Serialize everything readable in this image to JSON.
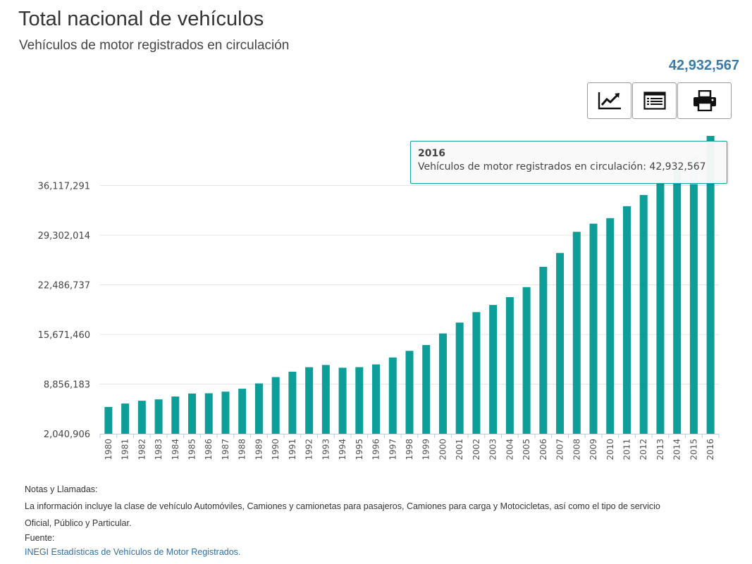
{
  "header": {
    "title": "Total nacional de vehículos",
    "subtitle": "Vehículos de motor registrados en circulación",
    "total_value": "42,932,567"
  },
  "toolbar": {
    "buttons": [
      {
        "name": "line-chart-button",
        "icon": "line-chart-icon"
      },
      {
        "name": "table-view-button",
        "icon": "table-list-icon"
      },
      {
        "name": "print-button",
        "icon": "printer-icon"
      }
    ]
  },
  "tooltip": {
    "year": "2016",
    "text": "Vehículos de motor registrados en circulación: 42,932,567"
  },
  "colors": {
    "bar": "#0e9e9a",
    "bar_highlight": "#a9dcdb",
    "accent": "#3a7aa8",
    "grid": "#e6e6e6"
  },
  "chart_data": {
    "type": "bar",
    "title": "Total nacional de vehículos",
    "subtitle": "Vehículos de motor registrados en circulación",
    "categories": [
      "1980",
      "1981",
      "1982",
      "1983",
      "1984",
      "1985",
      "1986",
      "1987",
      "1988",
      "1989",
      "1990",
      "1991",
      "1992",
      "1993",
      "1994",
      "1995",
      "1996",
      "1997",
      "1998",
      "1999",
      "2000",
      "2001",
      "2002",
      "2003",
      "2004",
      "2005",
      "2006",
      "2007",
      "2008",
      "2009",
      "2010",
      "2011",
      "2012",
      "2013",
      "2014",
      "2015",
      "2016"
    ],
    "series": [
      {
        "name": "Vehículos de motor registrados en circulación",
        "values": [
          5720000,
          6190000,
          6570000,
          6760000,
          7150000,
          7560000,
          7600000,
          7820000,
          8220000,
          8950000,
          9820000,
          10560000,
          11170000,
          11480000,
          11100000,
          11180000,
          11560000,
          12510000,
          13420000,
          14220000,
          15810000,
          17300000,
          18740000,
          19720000,
          20800000,
          22170000,
          24960000,
          26860000,
          29760000,
          30880000,
          31640000,
          33280000,
          34820000,
          36640000,
          38260000,
          40050000,
          42932567
        ]
      }
    ],
    "yticks": [
      "2,040,906",
      "8,856,183",
      "15,671,460",
      "22,486,737",
      "29,302,014",
      "36,117,291"
    ],
    "ytick_values": [
      2040906,
      8856183,
      15671460,
      22486737,
      29302014,
      36117291
    ],
    "ylim": [
      2040906,
      42932567
    ],
    "grid": true,
    "highlighted_category": "2016"
  },
  "notes": {
    "heading": "Notas y Llamadas:",
    "line1": "La información incluye la clase de vehículo Automóviles, Camiones y camionetas para pasajeros, Camiones para carga y Motocicletas, así como el tipo de servicio",
    "line2": "Oficial, Público y Particular.",
    "source_label": "Fuente:",
    "source_link": "INEGI Estadísticas de Vehículos de Motor Registrados."
  }
}
